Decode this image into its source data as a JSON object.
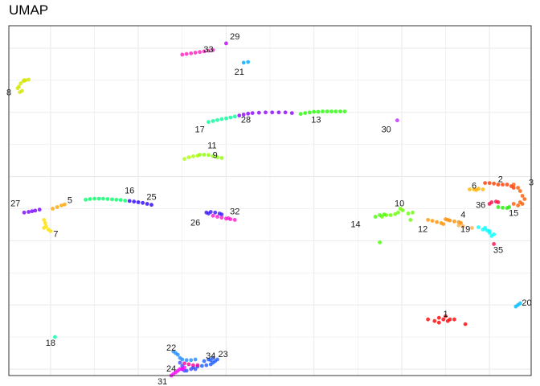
{
  "chart_data": {
    "type": "scatter",
    "title": "UMAP",
    "xlabel": "",
    "ylabel": "",
    "xlim": [
      -0.95,
      10.95
    ],
    "ylim": [
      -6.2,
      4.7
    ],
    "grid": true,
    "legend": "none",
    "axis_ticks_visible": false,
    "clusters": [
      {
        "id": "1",
        "color": "#FF0000",
        "label": [
          9.0,
          -4.3
        ],
        "points": [
          [
            8.6,
            -4.45
          ],
          [
            8.75,
            -4.5
          ],
          [
            8.85,
            -4.4
          ],
          [
            8.95,
            -4.45
          ],
          [
            9.05,
            -4.5
          ],
          [
            9.1,
            -4.45
          ],
          [
            9.2,
            -4.45
          ],
          [
            9.45,
            -4.6
          ],
          [
            8.85,
            -4.55
          ],
          [
            9.0,
            -4.35
          ]
        ]
      },
      {
        "id": "2",
        "color": "#FF3A00",
        "label": [
          10.25,
          -0.1
        ],
        "points": [
          [
            9.9,
            -0.2
          ],
          [
            10.0,
            -0.2
          ],
          [
            10.1,
            -0.22
          ],
          [
            10.2,
            -0.25
          ],
          [
            10.3,
            -0.25
          ],
          [
            10.4,
            -0.25
          ],
          [
            10.5,
            -0.3
          ],
          [
            10.55,
            -0.35
          ]
        ]
      },
      {
        "id": "3",
        "color": "#FF5A00",
        "label": [
          10.95,
          -0.2
        ],
        "points": [
          [
            10.55,
            -0.25
          ],
          [
            10.65,
            -0.35
          ],
          [
            10.7,
            -0.45
          ],
          [
            10.75,
            -0.6
          ],
          [
            10.8,
            -0.7
          ],
          [
            10.7,
            -0.8
          ],
          [
            10.65,
            -0.9
          ],
          [
            10.55,
            -0.85
          ],
          [
            10.75,
            -0.85
          ]
        ]
      },
      {
        "id": "4",
        "color": "#FF8C00",
        "label": [
          9.4,
          -1.2
        ],
        "points": [
          [
            9.0,
            -1.33
          ],
          [
            9.1,
            -1.37
          ],
          [
            9.2,
            -1.4
          ],
          [
            9.3,
            -1.42
          ],
          [
            9.35,
            -1.45
          ],
          [
            9.05,
            -1.35
          ]
        ]
      },
      {
        "id": "5",
        "color": "#FFA500",
        "label": [
          0.44,
          -0.75
        ],
        "points": [
          [
            0.05,
            -1.0
          ],
          [
            0.15,
            -0.95
          ],
          [
            0.25,
            -0.9
          ],
          [
            0.32,
            -0.87
          ]
        ]
      },
      {
        "id": "6",
        "color": "#FFB300",
        "label": [
          9.65,
          -0.3
        ],
        "points": [
          [
            9.55,
            -0.4
          ],
          [
            9.65,
            -0.4
          ],
          [
            9.75,
            -0.38
          ],
          [
            9.85,
            -0.4
          ],
          [
            9.7,
            -0.42
          ]
        ]
      },
      {
        "id": "7",
        "color": "#FFE000",
        "label": [
          0.12,
          -1.8
        ],
        "points": [
          [
            -0.15,
            -1.35
          ],
          [
            -0.12,
            -1.45
          ],
          [
            -0.1,
            -1.55
          ],
          [
            -0.15,
            -1.6
          ],
          [
            -0.05,
            -1.65
          ],
          [
            0.0,
            -1.7
          ]
        ]
      },
      {
        "id": "8",
        "color": "#D4E600",
        "label": [
          -0.95,
          2.6
        ],
        "points": [
          [
            -0.75,
            2.75
          ],
          [
            -0.72,
            2.8
          ],
          [
            -0.68,
            2.9
          ],
          [
            -0.62,
            2.97
          ],
          [
            -0.57,
            3.0
          ],
          [
            -0.5,
            3.02
          ],
          [
            -0.6,
            3.0
          ],
          [
            -0.7,
            2.63
          ],
          [
            -0.65,
            2.67
          ]
        ]
      },
      {
        "id": "9",
        "color": "#A8FF00",
        "label": [
          3.75,
          0.65
        ],
        "points": [
          [
            3.05,
            0.55
          ],
          [
            3.15,
            0.6
          ],
          [
            3.25,
            0.63
          ],
          [
            3.35,
            0.65
          ]
        ]
      },
      {
        "id": "10",
        "color": "#66FF00",
        "label": [
          7.95,
          -0.85
        ],
        "points": [
          [
            7.65,
            -1.2
          ],
          [
            7.75,
            -1.2
          ],
          [
            7.85,
            -1.17
          ],
          [
            7.92,
            -1.12
          ],
          [
            7.97,
            -1.0
          ],
          [
            8.02,
            -1.05
          ],
          [
            8.15,
            -1.15
          ],
          [
            8.25,
            -1.12
          ],
          [
            8.2,
            -1.35
          ],
          [
            7.55,
            -1.25
          ]
        ]
      },
      {
        "id": "11",
        "color": "#8CFF00",
        "label": [
          3.68,
          0.95
        ],
        "points": [
          [
            3.4,
            0.68
          ],
          [
            3.5,
            0.68
          ],
          [
            3.6,
            0.67
          ],
          [
            3.7,
            0.64
          ],
          [
            3.8,
            0.6
          ],
          [
            3.9,
            0.58
          ]
        ]
      },
      {
        "id": "12",
        "color": "#FF9400",
        "label": [
          8.48,
          -1.65
        ],
        "points": [
          [
            8.6,
            -1.35
          ],
          [
            8.7,
            -1.38
          ],
          [
            8.8,
            -1.42
          ],
          [
            8.9,
            -1.45
          ],
          [
            8.95,
            -1.48
          ]
        ]
      },
      {
        "id": "13",
        "color": "#22FF00",
        "label": [
          6.05,
          1.75
        ],
        "points": [
          [
            5.7,
            1.95
          ],
          [
            5.8,
            1.98
          ],
          [
            5.9,
            2.0
          ],
          [
            6.0,
            2.02
          ],
          [
            6.1,
            2.02
          ],
          [
            6.2,
            2.03
          ],
          [
            6.3,
            2.03
          ],
          [
            6.4,
            2.03
          ],
          [
            6.5,
            2.03
          ],
          [
            6.6,
            2.03
          ],
          [
            6.7,
            2.03
          ]
        ]
      },
      {
        "id": "14",
        "color": "#44FF00",
        "label": [
          6.95,
          -1.5
        ],
        "points": [
          [
            7.4,
            -1.25
          ],
          [
            7.5,
            -1.2
          ],
          [
            7.6,
            -1.18
          ],
          [
            7.5,
            -2.05
          ]
        ]
      },
      {
        "id": "15",
        "color": "#22EE00",
        "label": [
          10.55,
          -1.15
        ],
        "points": [
          [
            10.2,
            -0.95
          ],
          [
            10.3,
            -0.97
          ],
          [
            10.4,
            -0.98
          ],
          [
            10.45,
            -0.95
          ]
        ]
      },
      {
        "id": "16",
        "color": "#00FF66",
        "label": [
          1.8,
          -0.45
        ],
        "points": [
          [
            0.8,
            -0.72
          ],
          [
            0.9,
            -0.7
          ],
          [
            1.0,
            -0.69
          ],
          [
            1.1,
            -0.69
          ],
          [
            1.2,
            -0.69
          ],
          [
            1.3,
            -0.7
          ],
          [
            1.4,
            -0.71
          ],
          [
            1.5,
            -0.72
          ],
          [
            1.6,
            -0.73
          ],
          [
            1.7,
            -0.75
          ]
        ]
      },
      {
        "id": "17",
        "color": "#00FF99",
        "label": [
          3.4,
          1.45
        ],
        "points": [
          [
            3.6,
            1.7
          ],
          [
            3.7,
            1.73
          ],
          [
            3.8,
            1.76
          ],
          [
            3.9,
            1.79
          ],
          [
            4.0,
            1.81
          ],
          [
            4.1,
            1.84
          ],
          [
            4.2,
            1.87
          ]
        ]
      },
      {
        "id": "18",
        "color": "#00FFAA",
        "label": [
          0.0,
          -5.2
        ],
        "points": [
          [
            0.1,
            -5.0
          ]
        ]
      },
      {
        "id": "19",
        "color": "#FFAA44",
        "label": [
          9.45,
          -1.65
        ],
        "points": [
          [
            9.3,
            -1.52
          ],
          [
            9.4,
            -1.55
          ],
          [
            9.6,
            -1.6
          ]
        ]
      },
      {
        "id": "20",
        "color": "#00BBFF",
        "label": [
          10.85,
          -3.95
        ],
        "points": [
          [
            10.6,
            -4.05
          ],
          [
            10.65,
            -4.0
          ],
          [
            10.7,
            -3.95
          ]
        ]
      },
      {
        "id": "21",
        "color": "#00AAFF",
        "label": [
          4.3,
          3.25
        ],
        "points": [
          [
            4.4,
            3.55
          ],
          [
            4.5,
            3.57
          ]
        ]
      },
      {
        "id": "22",
        "color": "#1E8CFF",
        "label": [
          2.75,
          -5.35
        ],
        "points": [
          [
            2.8,
            -5.45
          ],
          [
            2.85,
            -5.5
          ],
          [
            2.9,
            -5.55
          ],
          [
            2.95,
            -5.65
          ],
          [
            3.0,
            -5.7
          ],
          [
            3.1,
            -5.72
          ],
          [
            3.2,
            -5.72
          ],
          [
            3.3,
            -5.7
          ]
        ]
      },
      {
        "id": "23",
        "color": "#1E5AFF",
        "label": [
          3.93,
          -5.55
        ],
        "points": [
          [
            3.25,
            -5.95
          ],
          [
            3.35,
            -5.92
          ],
          [
            3.45,
            -5.9
          ],
          [
            3.55,
            -5.88
          ],
          [
            3.65,
            -5.85
          ],
          [
            3.7,
            -5.8
          ],
          [
            3.75,
            -5.75
          ],
          [
            3.8,
            -5.7
          ],
          [
            3.7,
            -5.65
          ],
          [
            3.6,
            -5.7
          ],
          [
            3.5,
            -5.75
          ],
          [
            3.65,
            -5.72
          ]
        ]
      },
      {
        "id": "24",
        "color": "#3C50FF",
        "label": [
          2.75,
          -6.0
        ],
        "points": [
          [
            2.95,
            -5.8
          ],
          [
            3.0,
            -5.9
          ],
          [
            3.0,
            -6.0
          ],
          [
            3.05,
            -6.05
          ],
          [
            3.1,
            -6.05
          ],
          [
            3.2,
            -6.0
          ],
          [
            3.3,
            -6.0
          ]
        ]
      },
      {
        "id": "25",
        "color": "#2800FF",
        "label": [
          2.3,
          -0.65
        ],
        "points": [
          [
            1.8,
            -0.76
          ],
          [
            1.9,
            -0.78
          ],
          [
            2.0,
            -0.8
          ],
          [
            2.1,
            -0.82
          ],
          [
            2.2,
            -0.85
          ],
          [
            2.3,
            -0.88
          ]
        ]
      },
      {
        "id": "26",
        "color": "#3C14FF",
        "label": [
          3.3,
          -1.45
        ],
        "points": [
          [
            3.55,
            -1.12
          ],
          [
            3.65,
            -1.1
          ],
          [
            3.75,
            -1.12
          ],
          [
            3.85,
            -1.15
          ],
          [
            3.9,
            -1.18
          ],
          [
            3.6,
            -1.15
          ]
        ]
      },
      {
        "id": "27",
        "color": "#7800FF",
        "label": [
          -0.8,
          -0.85
        ],
        "points": [
          [
            -0.6,
            -1.12
          ],
          [
            -0.5,
            -1.1
          ],
          [
            -0.42,
            -1.08
          ],
          [
            -0.35,
            -1.06
          ],
          [
            -0.25,
            -1.03
          ]
        ]
      },
      {
        "id": "28",
        "color": "#8C00FF",
        "label": [
          4.45,
          1.75
        ],
        "points": [
          [
            4.3,
            1.9
          ],
          [
            4.4,
            1.93
          ],
          [
            4.5,
            1.96
          ],
          [
            4.6,
            1.98
          ],
          [
            4.75,
            1.99
          ],
          [
            4.9,
            2.0
          ],
          [
            5.05,
            2.0
          ],
          [
            5.2,
            2.0
          ],
          [
            5.35,
            2.0
          ],
          [
            5.5,
            1.98
          ]
        ]
      },
      {
        "id": "29",
        "color": "#BE00FF",
        "label": [
          4.2,
          4.35
        ],
        "points": [
          [
            4.0,
            4.15
          ]
        ]
      },
      {
        "id": "30",
        "color": "#BE28FF",
        "label": [
          7.65,
          1.45
        ],
        "points": [
          [
            7.9,
            1.75
          ]
        ]
      },
      {
        "id": "31",
        "color": "#FF00FF",
        "label": [
          2.55,
          -6.4
        ],
        "points": [
          [
            2.75,
            -6.2
          ],
          [
            2.8,
            -6.15
          ],
          [
            2.85,
            -6.1
          ],
          [
            2.9,
            -6.05
          ],
          [
            2.95,
            -6.0
          ],
          [
            3.0,
            -6.0
          ],
          [
            3.05,
            -5.95
          ]
        ]
      },
      {
        "id": "32",
        "color": "#FF14D2",
        "label": [
          4.2,
          -1.1
        ],
        "points": [
          [
            3.7,
            -1.22
          ],
          [
            3.8,
            -1.25
          ],
          [
            3.9,
            -1.28
          ],
          [
            4.0,
            -1.31
          ],
          [
            4.1,
            -1.33
          ],
          [
            4.2,
            -1.35
          ],
          [
            4.05,
            -1.3
          ]
        ]
      },
      {
        "id": "33",
        "color": "#FF1EBE",
        "label": [
          3.6,
          3.95
        ],
        "points": [
          [
            3.0,
            3.8
          ],
          [
            3.1,
            3.82
          ],
          [
            3.2,
            3.84
          ],
          [
            3.3,
            3.86
          ],
          [
            3.4,
            3.88
          ],
          [
            3.5,
            3.9
          ],
          [
            3.6,
            3.92
          ],
          [
            3.7,
            3.94
          ]
        ]
      },
      {
        "id": "34",
        "color": "#FF0096",
        "label": [
          3.65,
          -5.6
        ],
        "points": [
          [
            3.05,
            -5.82
          ],
          [
            3.15,
            -5.85
          ],
          [
            3.25,
            -5.88
          ],
          [
            3.35,
            -5.88
          ]
        ]
      },
      {
        "id": "35",
        "color": "#00FFFF",
        "label": [
          10.2,
          -2.3
        ],
        "points": [
          [
            9.75,
            -1.58
          ],
          [
            9.85,
            -1.65
          ],
          [
            9.95,
            -1.68
          ],
          [
            10.0,
            -1.75
          ],
          [
            10.05,
            -1.85
          ],
          [
            10.1,
            -1.8
          ],
          [
            10.0,
            -1.7
          ],
          [
            9.9,
            -1.6
          ]
        ]
      },
      {
        "id": "36",
        "color": "#FF0A46",
        "label": [
          9.8,
          -0.9
        ],
        "points": [
          [
            10.0,
            -0.85
          ],
          [
            10.05,
            -0.8
          ],
          [
            10.15,
            -0.78
          ],
          [
            10.2,
            -0.8
          ],
          [
            10.1,
            -2.1
          ]
        ]
      }
    ]
  }
}
